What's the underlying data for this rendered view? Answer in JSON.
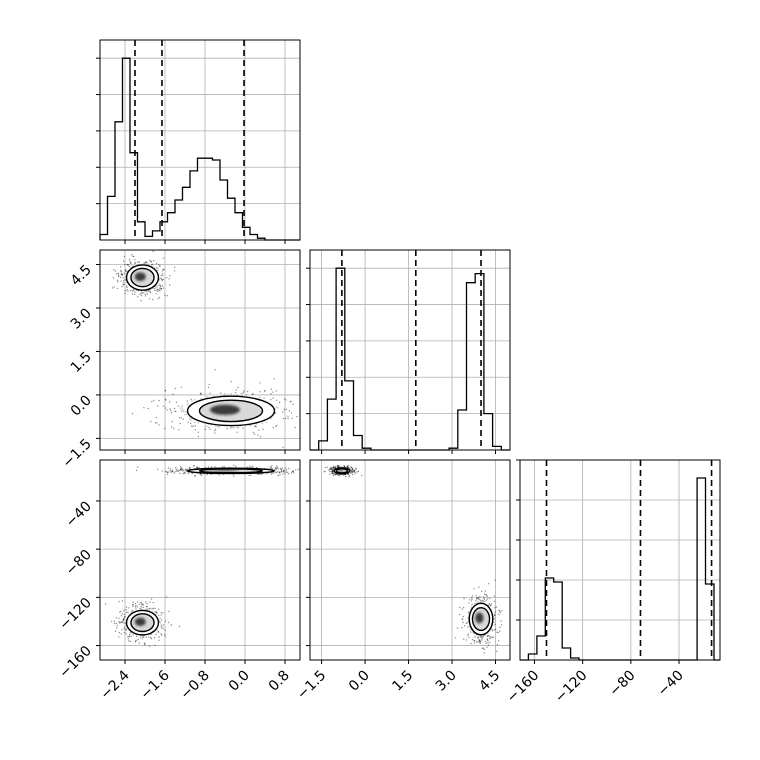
{
  "chart_data": {
    "type": "corner",
    "grid": true,
    "parameters": [
      {
        "index": 0,
        "ticks": [
          -2.4,
          -1.6,
          -0.8,
          0.0,
          0.8
        ],
        "tick_labels": [
          "−2.4",
          "−1.6",
          "−0.8",
          "0.0",
          "0.8"
        ]
      },
      {
        "index": 1,
        "ticks": [
          -1.5,
          0.0,
          1.5,
          3.0,
          4.5
        ],
        "tick_labels": [
          "−1.5",
          "0.0",
          "1.5",
          "3.0",
          "4.5"
        ]
      },
      {
        "index": 2,
        "ticks": [
          -160,
          -120,
          -80,
          -40
        ],
        "tick_labels": [
          "−160",
          "−120",
          "−80",
          "−40"
        ]
      }
    ],
    "ranges": [
      [
        -2.9,
        1.1
      ],
      [
        -1.9,
        5.0
      ],
      [
        -172,
        -6
      ]
    ],
    "diagonal": [
      {
        "param": 0,
        "ymax": 1.1,
        "bin_edges": [
          -2.9,
          -2.75,
          -2.6,
          -2.45,
          -2.3,
          -2.15,
          -2.0,
          -1.85,
          -1.7,
          -1.55,
          -1.4,
          -1.25,
          -1.1,
          -0.95,
          -0.8,
          -0.65,
          -0.5,
          -0.35,
          -0.2,
          -0.05,
          0.1,
          0.25,
          0.4,
          0.55,
          0.7,
          0.85,
          1.0,
          1.1
        ],
        "counts": [
          0.03,
          0.24,
          0.65,
          1.0,
          0.48,
          0.1,
          0.02,
          0.05,
          0.1,
          0.15,
          0.22,
          0.29,
          0.38,
          0.45,
          0.45,
          0.44,
          0.33,
          0.23,
          0.15,
          0.07,
          0.03,
          0.01,
          0.0,
          0.0,
          0.0,
          0.0,
          0.0
        ],
        "quantiles": [
          -2.2,
          -1.66,
          -0.02
        ]
      },
      {
        "param": 1,
        "ymax": 1.1,
        "bin_edges": [
          -1.9,
          -1.6,
          -1.3,
          -1.0,
          -0.7,
          -0.4,
          -0.1,
          0.2,
          0.5,
          0.8,
          1.1,
          1.4,
          1.7,
          2.0,
          2.3,
          2.6,
          2.9,
          3.2,
          3.5,
          3.8,
          4.1,
          4.4,
          4.7,
          5.0
        ],
        "counts": [
          0.0,
          0.05,
          0.28,
          1.0,
          0.38,
          0.08,
          0.01,
          0.0,
          0.0,
          0.0,
          0.0,
          0.0,
          0.0,
          0.0,
          0.0,
          0.0,
          0.01,
          0.22,
          0.92,
          0.97,
          0.2,
          0.02,
          0.0
        ],
        "quantiles": [
          -0.8,
          1.75,
          4.0
        ]
      },
      {
        "param": 2,
        "ymax": 1.0,
        "bin_edges": [
          -172,
          -165,
          -158,
          -151,
          -144,
          -137,
          -130,
          -123,
          -116,
          -109,
          -102,
          -95,
          -88,
          -81,
          -74,
          -67,
          -60,
          -53,
          -46,
          -39,
          -32,
          -25,
          -18,
          -11,
          -6
        ],
        "counts": [
          0.0,
          0.03,
          0.12,
          0.41,
          0.39,
          0.06,
          0.01,
          0.0,
          0.0,
          0.0,
          0.0,
          0.0,
          0.0,
          0.0,
          0.0,
          0.0,
          0.0,
          0.0,
          0.0,
          0.0,
          0.0,
          0.91,
          0.38,
          0.0
        ],
        "quantiles": [
          -150,
          -72,
          -13
        ]
      }
    ],
    "pairs": [
      {
        "x_param": 0,
        "y_param": 1,
        "clusters": [
          {
            "center": [
              -2.05,
              4.05
            ],
            "spread": [
              0.22,
              0.3
            ]
          },
          {
            "center": [
              -0.28,
              -0.55
            ],
            "spread": [
              0.6,
              0.35
            ]
          }
        ]
      },
      {
        "x_param": 0,
        "y_param": 2,
        "clusters": [
          {
            "center": [
              -2.05,
              -141
            ],
            "spread": [
              0.22,
              7
            ]
          },
          {
            "center": [
              -0.28,
              -15
            ],
            "spread": [
              0.6,
              1.5
            ]
          }
        ]
      },
      {
        "x_param": 1,
        "y_param": 2,
        "clusters": [
          {
            "center": [
              -0.8,
              -15
            ],
            "spread": [
              0.18,
              1.6
            ]
          },
          {
            "center": [
              4.0,
              -138
            ],
            "spread": [
              0.28,
              9
            ]
          }
        ]
      }
    ]
  }
}
